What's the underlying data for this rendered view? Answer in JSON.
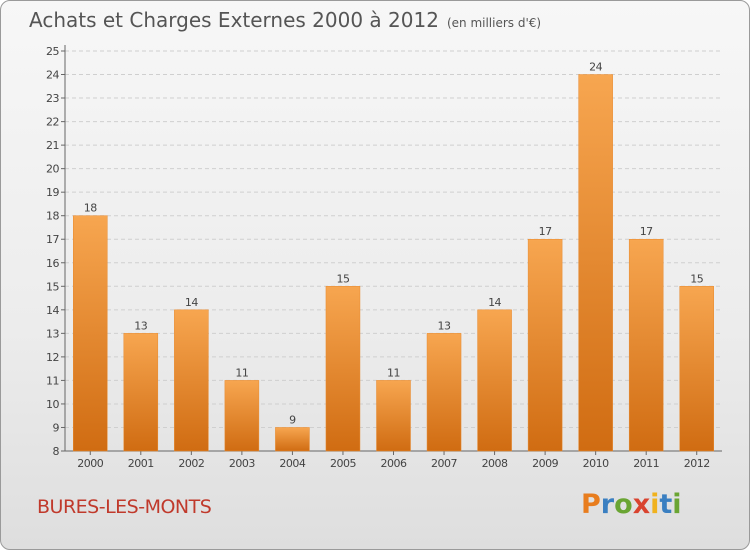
{
  "header": {
    "title": "Achats et Charges Externes 2000 à 2012",
    "unit": "(en milliers d'€)"
  },
  "footer": {
    "commune": "BURES-LES-MONTS",
    "logo": [
      "P",
      "r",
      "o",
      "x",
      "i",
      "t",
      "i"
    ]
  },
  "colors": {
    "bar_top": "#f7a650",
    "bar_bottom": "#d06c12",
    "grid": "#cfcfcf",
    "commune": "#c0392b"
  },
  "chart_data": {
    "type": "bar",
    "title": "Achats et Charges Externes 2000 à 2012",
    "subtitle": "(en milliers d'€)",
    "categories": [
      "2000",
      "2001",
      "2002",
      "2003",
      "2004",
      "2005",
      "2006",
      "2007",
      "2008",
      "2009",
      "2010",
      "2011",
      "2012"
    ],
    "values": [
      18,
      13,
      14,
      11,
      9,
      15,
      11,
      13,
      14,
      17,
      24,
      17,
      15
    ],
    "ylim": [
      8,
      25
    ],
    "yticks": [
      8,
      9,
      10,
      11,
      12,
      13,
      14,
      15,
      16,
      17,
      18,
      19,
      20,
      21,
      22,
      23,
      24,
      25
    ],
    "grid": true,
    "xlabel": "",
    "ylabel": ""
  }
}
